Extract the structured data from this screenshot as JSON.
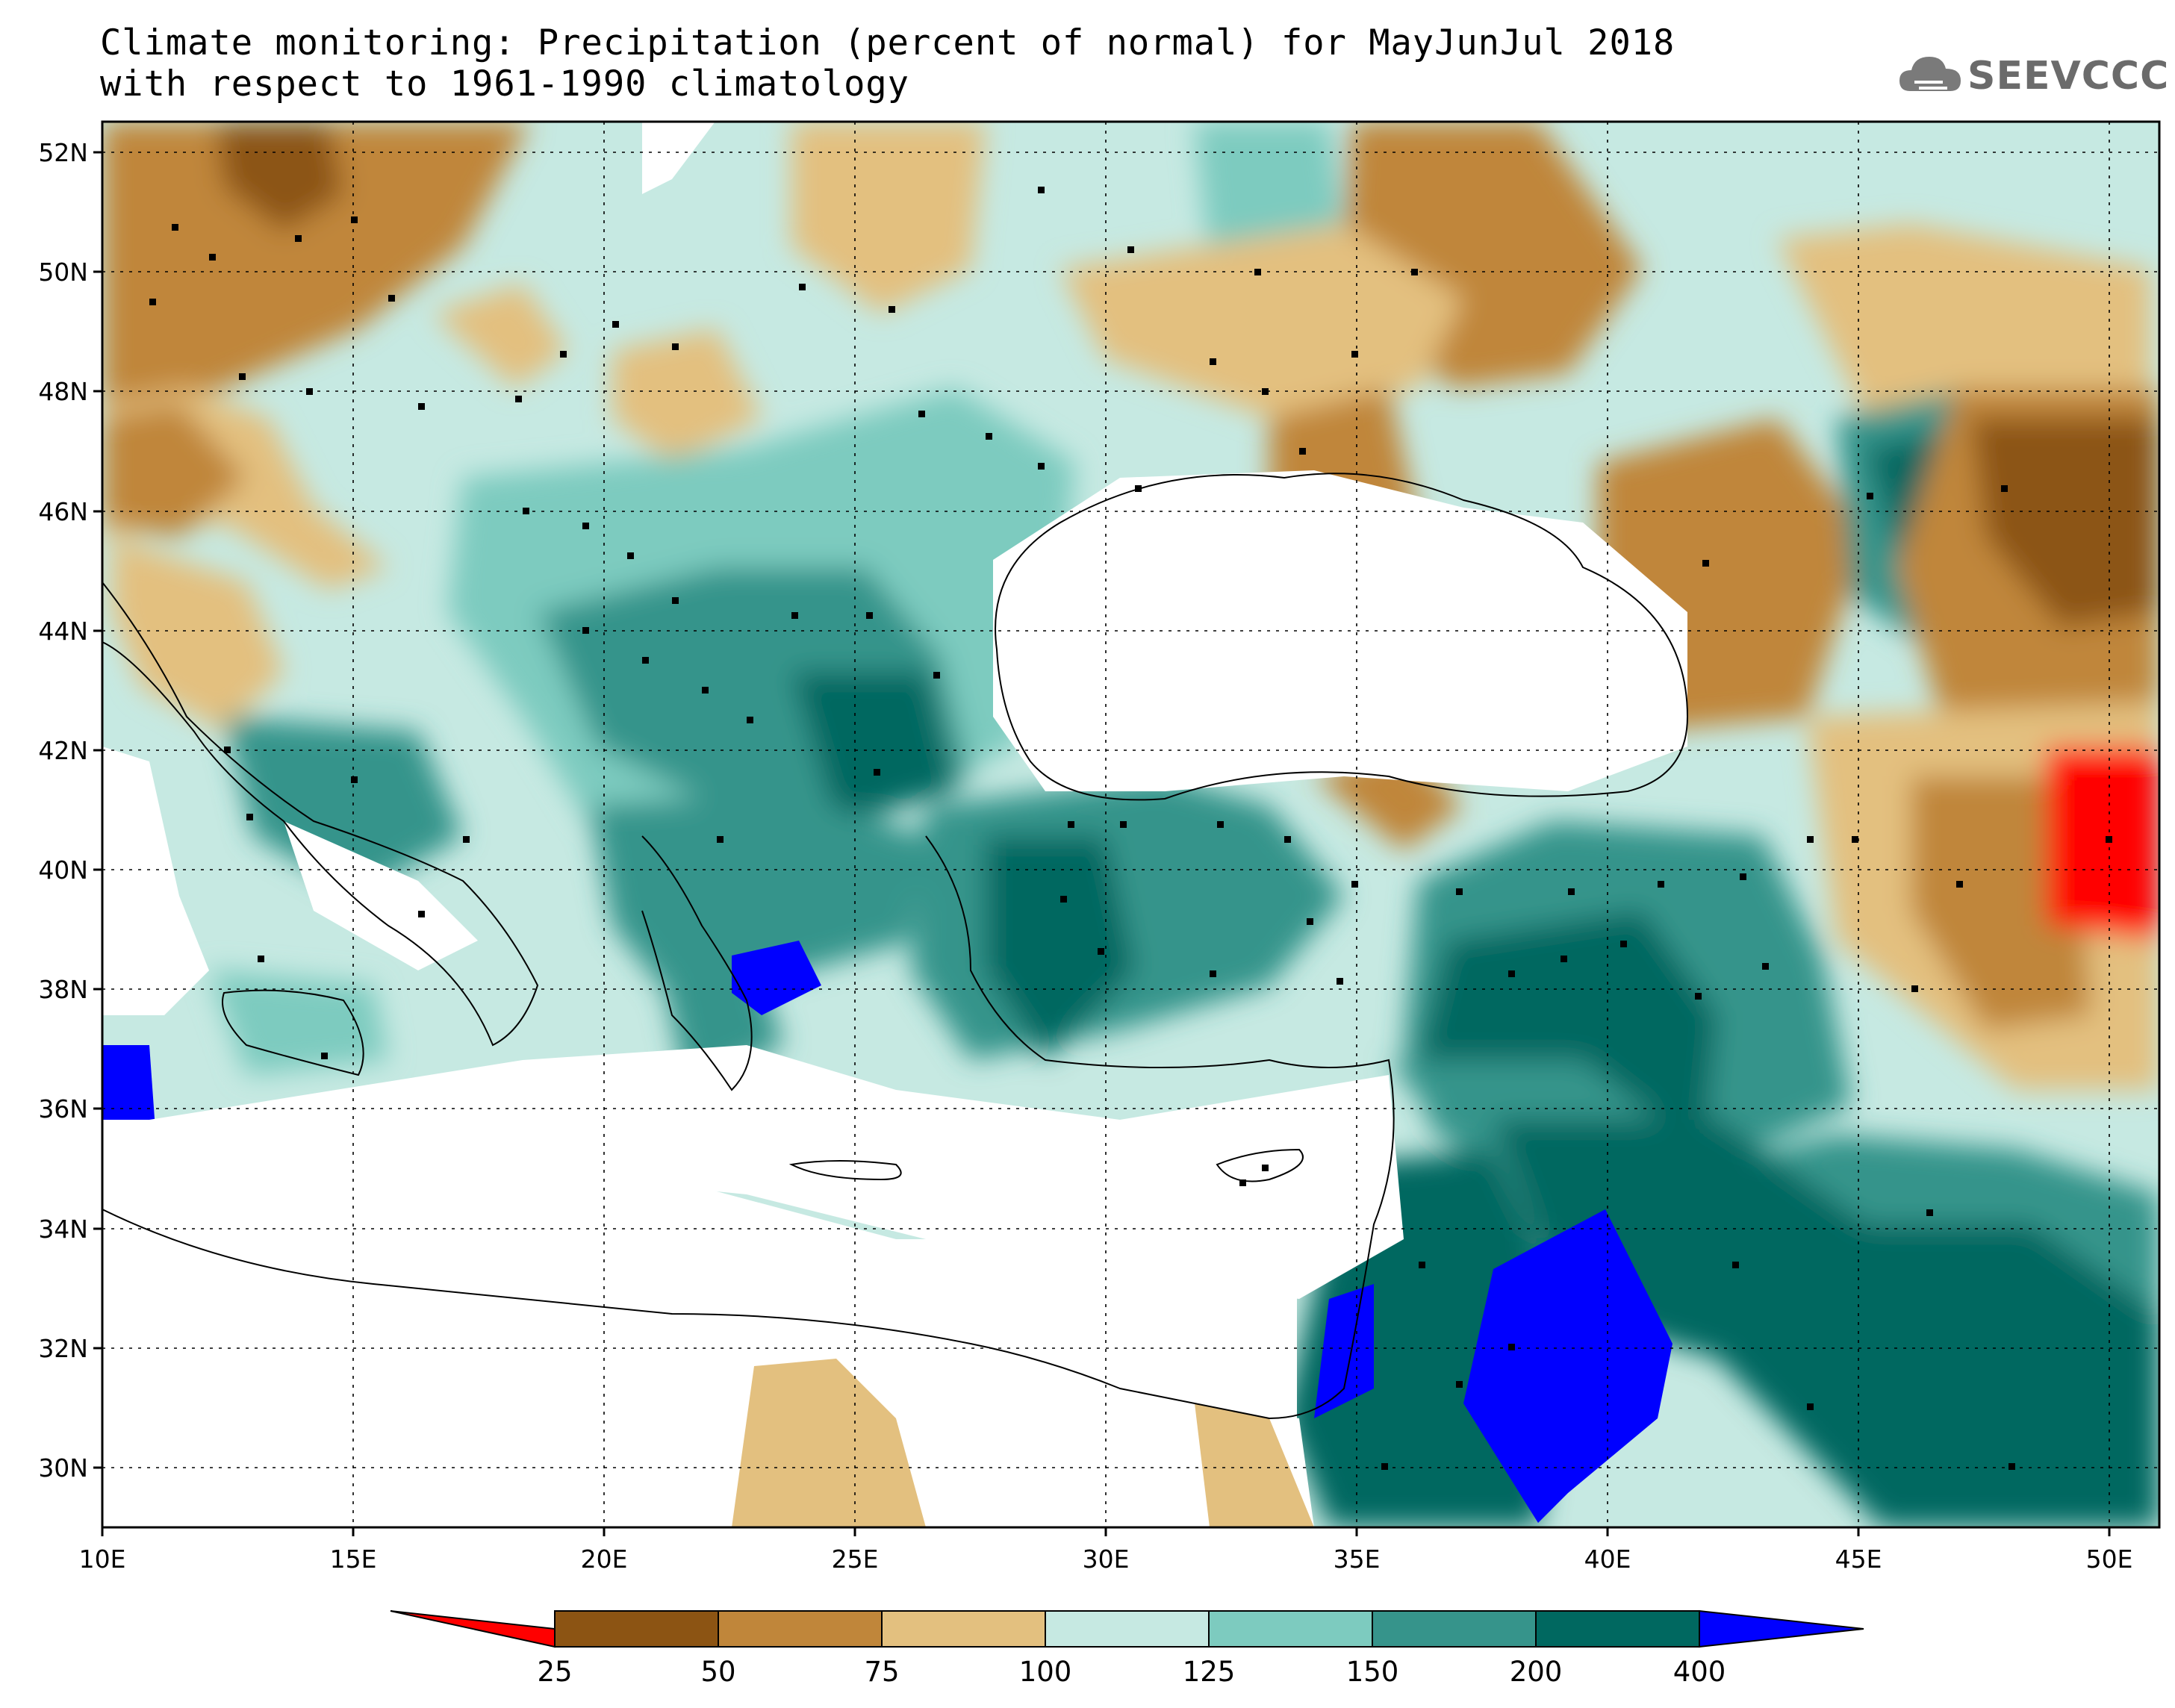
{
  "header": {
    "title_line1": "Climate monitoring: Precipitation (percent of normal) for MayJunJul 2018",
    "title_line2": "with respect to 1961-1990 climatology",
    "logo_text": "SEEVCCC"
  },
  "map_extent": {
    "lon_min": 10,
    "lon_max": 51,
    "lat_min": 29,
    "lat_max": 52.5
  },
  "axes": {
    "lon_ticks": [
      "10E",
      "15E",
      "20E",
      "25E",
      "30E",
      "35E",
      "40E",
      "45E",
      "50E"
    ],
    "lat_ticks": [
      "30N",
      "32N",
      "34N",
      "36N",
      "38N",
      "40N",
      "42N",
      "44N",
      "46N",
      "48N",
      "50N",
      "52N"
    ]
  },
  "legend": {
    "colors": [
      "#ff0000",
      "#8c5413",
      "#c0863a",
      "#e3c07f",
      "#c6e9e2",
      "#7dcbbf",
      "#36948b",
      "#006860",
      "#0000ff"
    ],
    "labels": [
      "25",
      "50",
      "75",
      "100",
      "125",
      "150",
      "200",
      "400"
    ]
  }
}
